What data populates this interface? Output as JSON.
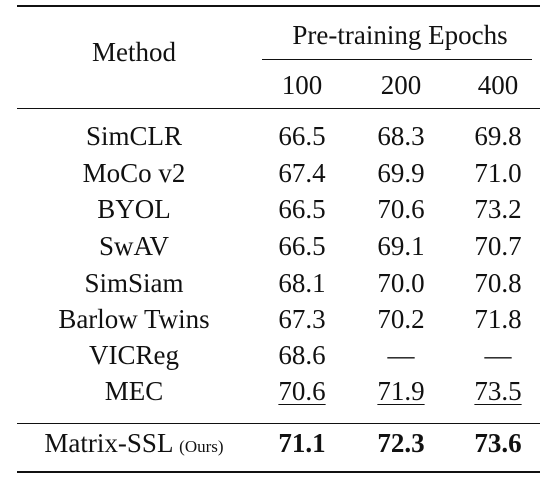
{
  "table": {
    "method_header": "Method",
    "group_header": "Pre-training Epochs",
    "epochs": [
      "100",
      "200",
      "400"
    ],
    "rows": [
      {
        "method": "SimCLR",
        "values": [
          "66.5",
          "68.3",
          "69.8"
        ]
      },
      {
        "method": "MoCo v2",
        "values": [
          "67.4",
          "69.9",
          "71.0"
        ]
      },
      {
        "method": "BYOL",
        "values": [
          "66.5",
          "70.6",
          "73.2"
        ]
      },
      {
        "method": "SwAV",
        "values": [
          "66.5",
          "69.1",
          "70.7"
        ]
      },
      {
        "method": "SimSiam",
        "values": [
          "68.1",
          "70.0",
          "70.8"
        ]
      },
      {
        "method": "Barlow Twins",
        "values": [
          "67.3",
          "70.2",
          "71.8"
        ]
      },
      {
        "method": "VICReg",
        "values": [
          "68.6",
          "—",
          "—"
        ]
      },
      {
        "method": "MEC",
        "values": [
          "70.6",
          "71.9",
          "73.5"
        ]
      }
    ],
    "final_row": {
      "method": "Matrix-SSL",
      "method_note": "(Ours)",
      "values": [
        "71.1",
        "72.3",
        "73.6"
      ]
    }
  }
}
